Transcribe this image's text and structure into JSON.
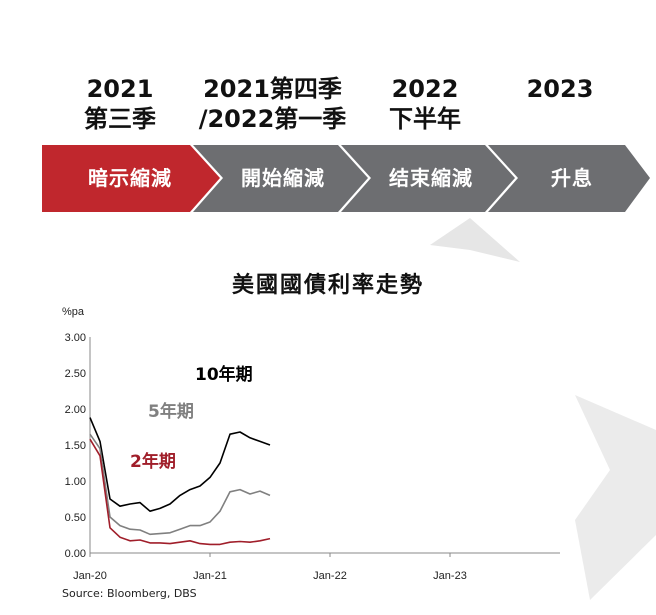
{
  "stages": [
    {
      "year": "2021",
      "sub": "第三季",
      "label": "暗示縮減",
      "color": "#c0272d"
    },
    {
      "year": "2021第四季",
      "sub": "/2022第一季",
      "label": "開始縮減",
      "color": "#6d6e71"
    },
    {
      "year": "2022",
      "sub": "下半年",
      "label": "结束縮減",
      "color": "#6d6e71"
    },
    {
      "year": "2023",
      "sub": "",
      "label": "升息",
      "color": "#6d6e71"
    }
  ],
  "chart_data": {
    "type": "line",
    "title": "美國國債利率走勢",
    "ylabel": "%pa",
    "ylim": [
      0,
      3
    ],
    "yticks": [
      "0.00",
      "0.50",
      "1.00",
      "1.50",
      "2.00",
      "2.50",
      "3.00"
    ],
    "xticks": [
      "Jan-20",
      "Jan-21",
      "Jan-22",
      "Jan-23"
    ],
    "xlim": [
      "2020-01",
      "2023-12"
    ],
    "source": "Source: Bloomberg, DBS",
    "series": [
      {
        "name": "10年期",
        "color": "#000000",
        "x": [
          "2020-01",
          "2020-02",
          "2020-03",
          "2020-04",
          "2020-05",
          "2020-06",
          "2020-07",
          "2020-08",
          "2020-09",
          "2020-10",
          "2020-11",
          "2020-12",
          "2021-01",
          "2021-02",
          "2021-03",
          "2021-04",
          "2021-05",
          "2021-06",
          "2021-07"
        ],
        "y": [
          1.88,
          1.55,
          0.75,
          0.65,
          0.68,
          0.7,
          0.58,
          0.62,
          0.68,
          0.8,
          0.88,
          0.93,
          1.05,
          1.25,
          1.65,
          1.68,
          1.6,
          1.55,
          1.5
        ]
      },
      {
        "name": "5年期",
        "color": "#808080",
        "x": [
          "2020-01",
          "2020-02",
          "2020-03",
          "2020-04",
          "2020-05",
          "2020-06",
          "2020-07",
          "2020-08",
          "2020-09",
          "2020-10",
          "2020-11",
          "2020-12",
          "2021-01",
          "2021-02",
          "2021-03",
          "2021-04",
          "2021-05",
          "2021-06",
          "2021-07"
        ],
        "y": [
          1.65,
          1.45,
          0.5,
          0.38,
          0.33,
          0.32,
          0.26,
          0.27,
          0.28,
          0.33,
          0.38,
          0.38,
          0.43,
          0.58,
          0.85,
          0.88,
          0.82,
          0.86,
          0.8
        ]
      },
      {
        "name": "2年期",
        "color": "#a01e2a",
        "x": [
          "2020-01",
          "2020-02",
          "2020-03",
          "2020-04",
          "2020-05",
          "2020-06",
          "2020-07",
          "2020-08",
          "2020-09",
          "2020-10",
          "2020-11",
          "2020-12",
          "2021-01",
          "2021-02",
          "2021-03",
          "2021-04",
          "2021-05",
          "2021-06",
          "2021-07"
        ],
        "y": [
          1.58,
          1.35,
          0.35,
          0.22,
          0.17,
          0.18,
          0.14,
          0.14,
          0.13,
          0.15,
          0.17,
          0.13,
          0.12,
          0.12,
          0.15,
          0.16,
          0.15,
          0.17,
          0.2
        ]
      }
    ]
  }
}
